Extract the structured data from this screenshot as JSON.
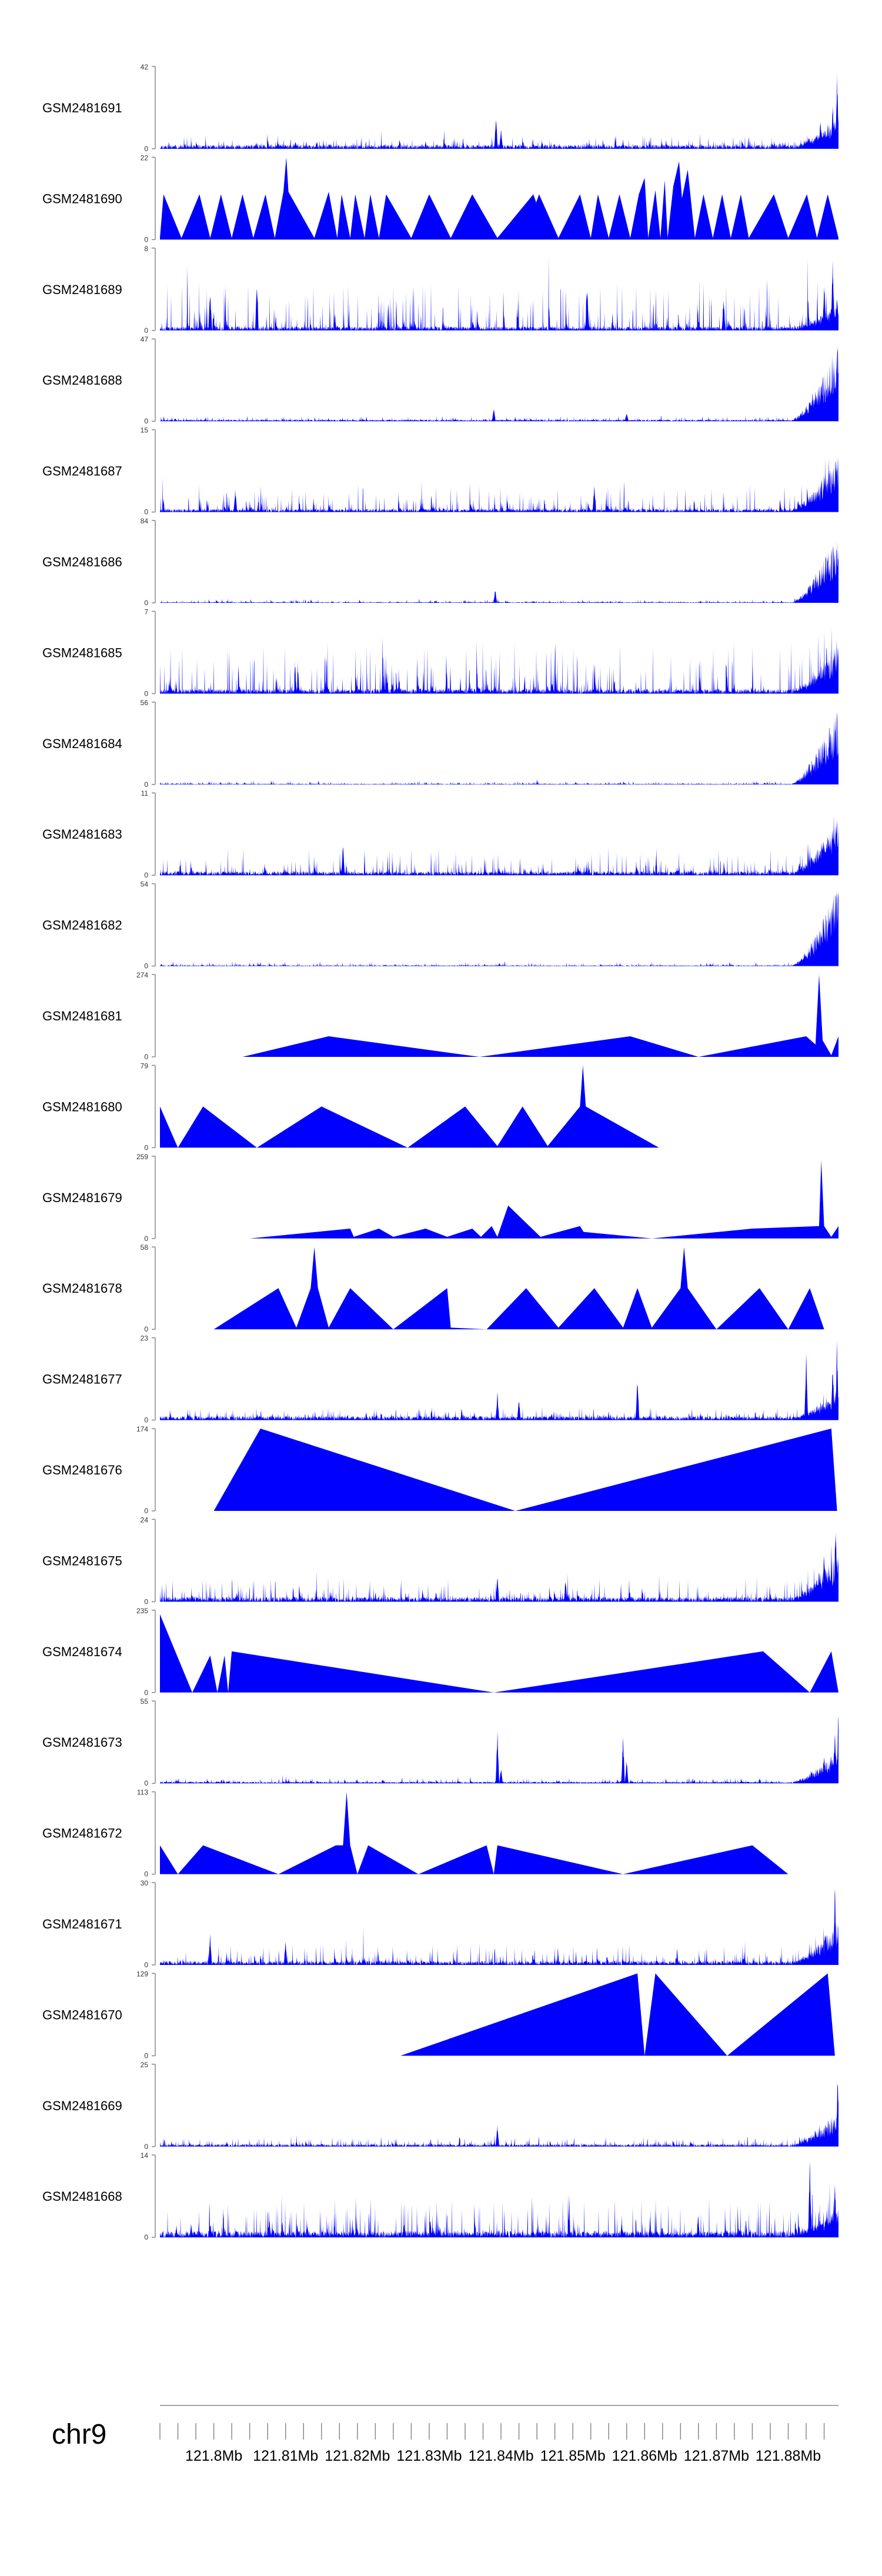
{
  "chart_data": {
    "type": "area",
    "chromosome_label": "chr9",
    "fill_color": "#0000ff",
    "axis_color": "#888888",
    "x_unit": "Mb",
    "xlim": [
      121.7925,
      121.887
    ],
    "x_tick_labels": [
      {
        "value": 121.8,
        "label": "121.8Mb"
      },
      {
        "value": 121.81,
        "label": "121.81Mb"
      },
      {
        "value": 121.82,
        "label": "121.82Mb"
      },
      {
        "value": 121.83,
        "label": "121.83Mb"
      },
      {
        "value": 121.84,
        "label": "121.84Mb"
      },
      {
        "value": 121.85,
        "label": "121.85Mb"
      },
      {
        "value": 121.86,
        "label": "121.86Mb"
      },
      {
        "value": 121.87,
        "label": "121.87Mb"
      },
      {
        "value": 121.88,
        "label": "121.88Mb"
      }
    ],
    "minor_tick_step": 0.0025,
    "tracks": [
      {
        "name": "GSM2481691",
        "ymin": 0,
        "ymax": 42,
        "style": "dense",
        "base": 0.05,
        "noise": 0.12,
        "tail": 0.35,
        "seed": 11,
        "peaks": [
          [
            121.8393,
            0.45
          ],
          [
            121.84,
            0.25
          ],
          [
            121.8845,
            0.4
          ],
          [
            121.8862,
            0.6
          ],
          [
            121.8868,
            1.0
          ]
        ]
      },
      {
        "name": "GSM2481690",
        "ymin": 0,
        "ymax": 22,
        "style": "tri",
        "points": [
          [
            121.7925,
            0.02
          ],
          [
            121.793,
            0.55
          ],
          [
            121.7955,
            0.02
          ],
          [
            121.798,
            0.55
          ],
          [
            121.7995,
            0.02
          ],
          [
            121.801,
            0.55
          ],
          [
            121.8025,
            0.02
          ],
          [
            121.804,
            0.55
          ],
          [
            121.8055,
            0.02
          ],
          [
            121.8072,
            0.55
          ],
          [
            121.8085,
            0.02
          ],
          [
            121.8097,
            0.58
          ],
          [
            121.8101,
            1.0
          ],
          [
            121.8104,
            0.58
          ],
          [
            121.814,
            0.02
          ],
          [
            121.816,
            0.58
          ],
          [
            121.8172,
            0.02
          ],
          [
            121.8178,
            0.55
          ],
          [
            121.819,
            0.02
          ],
          [
            121.8197,
            0.55
          ],
          [
            121.821,
            0.02
          ],
          [
            121.8218,
            0.55
          ],
          [
            121.823,
            0.02
          ],
          [
            121.824,
            0.55
          ],
          [
            121.8275,
            0.02
          ],
          [
            121.83,
            0.55
          ],
          [
            121.833,
            0.02
          ],
          [
            121.836,
            0.55
          ],
          [
            121.8395,
            0.02
          ],
          [
            121.8445,
            0.55
          ],
          [
            121.8449,
            0.45
          ],
          [
            121.8453,
            0.55
          ],
          [
            121.848,
            0.02
          ],
          [
            121.851,
            0.55
          ],
          [
            121.8525,
            0.02
          ],
          [
            121.8535,
            0.55
          ],
          [
            121.855,
            0.02
          ],
          [
            121.8565,
            0.55
          ],
          [
            121.858,
            0.02
          ],
          [
            121.8592,
            0.55
          ],
          [
            121.86,
            0.75
          ],
          [
            121.8605,
            0.02
          ],
          [
            121.8615,
            0.6
          ],
          [
            121.8622,
            0.02
          ],
          [
            121.8628,
            0.72
          ],
          [
            121.8632,
            0.02
          ],
          [
            121.864,
            0.65
          ],
          [
            121.8648,
            0.95
          ],
          [
            121.8652,
            0.5
          ],
          [
            121.866,
            0.85
          ],
          [
            121.867,
            0.02
          ],
          [
            121.8682,
            0.55
          ],
          [
            121.8695,
            0.02
          ],
          [
            121.8708,
            0.55
          ],
          [
            121.872,
            0.02
          ],
          [
            121.8734,
            0.55
          ],
          [
            121.8745,
            0.02
          ],
          [
            121.878,
            0.55
          ],
          [
            121.88,
            0.02
          ],
          [
            121.8826,
            0.55
          ],
          [
            121.884,
            0.02
          ],
          [
            121.8855,
            0.55
          ],
          [
            121.887,
            0.02
          ]
        ]
      },
      {
        "name": "GSM2481689",
        "ymin": 0,
        "ymax": 8,
        "style": "dense",
        "base": 0.05,
        "noise": 0.55,
        "tail": 0.3,
        "seed": 23,
        "peaks": [
          [
            121.7995,
            0.55
          ],
          [
            121.806,
            0.6
          ],
          [
            121.852,
            0.6
          ],
          [
            121.871,
            0.45
          ],
          [
            121.885,
            0.6
          ],
          [
            121.8862,
            0.95
          ],
          [
            121.8868,
            0.5
          ]
        ]
      },
      {
        "name": "GSM2481688",
        "ymin": 0,
        "ymax": 47,
        "style": "dense",
        "base": 0.02,
        "noise": 0.05,
        "tail": 0.95,
        "seed": 31,
        "peaks": [
          [
            121.839,
            0.18
          ],
          [
            121.8575,
            0.12
          ]
        ]
      },
      {
        "name": "GSM2481687",
        "ymin": 0,
        "ymax": 15,
        "style": "dense",
        "base": 0.04,
        "noise": 0.3,
        "tail": 0.7,
        "seed": 37,
        "peaks": [
          [
            121.803,
            0.3
          ],
          [
            121.853,
            0.35
          ]
        ]
      },
      {
        "name": "GSM2481686",
        "ymin": 0,
        "ymax": 84,
        "style": "dense",
        "base": 0.01,
        "noise": 0.04,
        "tail": 0.9,
        "seed": 41,
        "peaks": [
          [
            121.8392,
            0.18
          ]
        ]
      },
      {
        "name": "GSM2481685",
        "ymin": 0,
        "ymax": 7,
        "style": "dense",
        "base": 0.06,
        "noise": 0.6,
        "tail": 0.55,
        "seed": 43,
        "peaks": []
      },
      {
        "name": "GSM2481684",
        "ymin": 0,
        "ymax": 56,
        "style": "dense",
        "base": 0.01,
        "noise": 0.04,
        "tail": 0.95,
        "seed": 47,
        "peaks": []
      },
      {
        "name": "GSM2481683",
        "ymin": 0,
        "ymax": 11,
        "style": "dense",
        "base": 0.05,
        "noise": 0.3,
        "tail": 0.7,
        "seed": 53,
        "peaks": [
          [
            121.818,
            0.4
          ]
        ]
      },
      {
        "name": "GSM2481682",
        "ymin": 0,
        "ymax": 54,
        "style": "dense",
        "base": 0.01,
        "noise": 0.05,
        "tail": 1.0,
        "seed": 59,
        "peaks": []
      },
      {
        "name": "GSM2481681",
        "ymin": 0,
        "ymax": 274,
        "style": "tri",
        "points": [
          [
            121.804,
            0.0
          ],
          [
            121.816,
            0.25
          ],
          [
            121.837,
            0.0
          ],
          [
            121.858,
            0.25
          ],
          [
            121.8675,
            0.0
          ],
          [
            121.8825,
            0.25
          ],
          [
            121.8838,
            0.15
          ],
          [
            121.8843,
            1.0
          ],
          [
            121.8848,
            0.2
          ],
          [
            121.886,
            0.02
          ],
          [
            121.887,
            0.25
          ]
        ]
      },
      {
        "name": "GSM2481680",
        "ymin": 0,
        "ymax": 79,
        "style": "tri",
        "points": [
          [
            121.7925,
            0.5
          ],
          [
            121.795,
            0.0
          ],
          [
            121.7985,
            0.5
          ],
          [
            121.806,
            0.0
          ],
          [
            121.815,
            0.5
          ],
          [
            121.827,
            0.0
          ],
          [
            121.835,
            0.5
          ],
          [
            121.8395,
            0.02
          ],
          [
            121.843,
            0.5
          ],
          [
            121.8465,
            0.02
          ],
          [
            121.851,
            0.5
          ],
          [
            121.8514,
            1.0
          ],
          [
            121.8518,
            0.5
          ],
          [
            121.862,
            0.0
          ]
        ]
      },
      {
        "name": "GSM2481679",
        "ymin": 0,
        "ymax": 259,
        "style": "tri",
        "points": [
          [
            121.805,
            0.0
          ],
          [
            121.819,
            0.12
          ],
          [
            121.8195,
            0.02
          ],
          [
            121.823,
            0.12
          ],
          [
            121.825,
            0.02
          ],
          [
            121.8295,
            0.12
          ],
          [
            121.8325,
            0.02
          ],
          [
            121.836,
            0.12
          ],
          [
            121.8372,
            0.02
          ],
          [
            121.8387,
            0.15
          ],
          [
            121.8395,
            0.02
          ],
          [
            121.841,
            0.4
          ],
          [
            121.8455,
            0.02
          ],
          [
            121.851,
            0.15
          ],
          [
            121.8515,
            0.08
          ],
          [
            121.861,
            0.0
          ],
          [
            121.875,
            0.12
          ],
          [
            121.8843,
            0.15
          ],
          [
            121.8846,
            0.95
          ],
          [
            121.885,
            0.15
          ],
          [
            121.886,
            0.02
          ],
          [
            121.887,
            0.15
          ]
        ]
      },
      {
        "name": "GSM2481678",
        "ymin": 0,
        "ymax": 58,
        "style": "tri",
        "points": [
          [
            121.8,
            0.0
          ],
          [
            121.809,
            0.5
          ],
          [
            121.8115,
            0.02
          ],
          [
            121.8135,
            0.5
          ],
          [
            121.814,
            1.0
          ],
          [
            121.8145,
            0.5
          ],
          [
            121.816,
            0.02
          ],
          [
            121.819,
            0.5
          ],
          [
            121.825,
            0.0
          ],
          [
            121.8325,
            0.5
          ],
          [
            121.833,
            0.02
          ],
          [
            121.838,
            0.0
          ],
          [
            121.8435,
            0.5
          ],
          [
            121.848,
            0.02
          ],
          [
            121.853,
            0.5
          ],
          [
            121.857,
            0.02
          ],
          [
            121.859,
            0.5
          ],
          [
            121.861,
            0.02
          ],
          [
            121.865,
            0.5
          ],
          [
            121.8655,
            1.0
          ],
          [
            121.866,
            0.5
          ],
          [
            121.87,
            0.0
          ],
          [
            121.876,
            0.5
          ],
          [
            121.88,
            0.0
          ],
          [
            121.883,
            0.5
          ],
          [
            121.885,
            0.0
          ]
        ]
      },
      {
        "name": "GSM2481677",
        "ymin": 0,
        "ymax": 23,
        "style": "dense",
        "base": 0.05,
        "noise": 0.12,
        "tail": 0.3,
        "seed": 61,
        "peaks": [
          [
            121.8395,
            0.35
          ],
          [
            121.8425,
            0.3
          ],
          [
            121.859,
            0.6
          ],
          [
            121.8825,
            0.9
          ],
          [
            121.884,
            0.2
          ],
          [
            121.8862,
            0.8
          ],
          [
            121.8868,
            1.0
          ]
        ]
      },
      {
        "name": "GSM2481676",
        "ymin": 0,
        "ymax": 174,
        "style": "tri",
        "points": [
          [
            121.8,
            0.0
          ],
          [
            121.8065,
            1.0
          ],
          [
            121.842,
            0.0
          ],
          [
            121.886,
            1.0
          ],
          [
            121.8868,
            0.0
          ]
        ]
      },
      {
        "name": "GSM2481675",
        "ymin": 0,
        "ymax": 24,
        "style": "dense",
        "base": 0.06,
        "noise": 0.25,
        "tail": 0.6,
        "seed": 67,
        "peaks": [
          [
            121.8395,
            0.35
          ],
          [
            121.849,
            0.3
          ],
          [
            121.885,
            0.7
          ],
          [
            121.8866,
            1.0
          ]
        ]
      },
      {
        "name": "GSM2481674",
        "ymin": 0,
        "ymax": 235,
        "style": "tri",
        "points": [
          [
            121.7925,
            0.95
          ],
          [
            121.797,
            0.0
          ],
          [
            121.7995,
            0.45
          ],
          [
            121.8005,
            0.0
          ],
          [
            121.8015,
            0.45
          ],
          [
            121.802,
            0.0
          ],
          [
            121.8025,
            0.5
          ],
          [
            121.839,
            0.0
          ],
          [
            121.8765,
            0.5
          ],
          [
            121.883,
            0.0
          ],
          [
            121.886,
            0.5
          ],
          [
            121.887,
            0.0
          ]
        ]
      },
      {
        "name": "GSM2481673",
        "ymin": 0,
        "ymax": 55,
        "style": "dense",
        "base": 0.02,
        "noise": 0.06,
        "tail": 0.4,
        "seed": 71,
        "peaks": [
          [
            121.8395,
            0.7
          ],
          [
            121.84,
            0.2
          ],
          [
            121.857,
            0.6
          ],
          [
            121.8575,
            0.3
          ],
          [
            121.885,
            0.4
          ],
          [
            121.8865,
            0.7
          ],
          [
            121.887,
            1.0
          ]
        ]
      },
      {
        "name": "GSM2481672",
        "ymin": 0,
        "ymax": 113,
        "style": "tri",
        "points": [
          [
            121.7925,
            0.35
          ],
          [
            121.795,
            0.0
          ],
          [
            121.7985,
            0.35
          ],
          [
            121.809,
            0.0
          ],
          [
            121.817,
            0.35
          ],
          [
            121.818,
            0.35
          ],
          [
            121.8185,
            1.0
          ],
          [
            121.819,
            0.35
          ],
          [
            121.82,
            0.0
          ],
          [
            121.8215,
            0.35
          ],
          [
            121.8285,
            0.0
          ],
          [
            121.838,
            0.35
          ],
          [
            121.839,
            0.0
          ],
          [
            121.8395,
            0.35
          ],
          [
            121.857,
            0.0
          ],
          [
            121.875,
            0.35
          ],
          [
            121.88,
            0.0
          ]
        ]
      },
      {
        "name": "GSM2481671",
        "ymin": 0,
        "ymax": 30,
        "style": "dense",
        "base": 0.05,
        "noise": 0.22,
        "tail": 0.5,
        "seed": 73,
        "peaks": [
          [
            121.7995,
            0.4
          ],
          [
            121.81,
            0.35
          ],
          [
            121.8865,
            1.0
          ]
        ]
      },
      {
        "name": "GSM2481670",
        "ymin": 0,
        "ymax": 129,
        "style": "tri",
        "points": [
          [
            121.826,
            0.0
          ],
          [
            121.859,
            1.0
          ],
          [
            121.86,
            0.0
          ],
          [
            121.8615,
            1.0
          ],
          [
            121.8715,
            0.0
          ],
          [
            121.8855,
            1.0
          ],
          [
            121.8865,
            0.0
          ]
        ]
      },
      {
        "name": "GSM2481669",
        "ymin": 0,
        "ymax": 25,
        "style": "dense",
        "base": 0.03,
        "noise": 0.1,
        "tail": 0.45,
        "seed": 79,
        "peaks": [
          [
            121.8395,
            0.3
          ],
          [
            121.8869,
            1.0
          ]
        ]
      },
      {
        "name": "GSM2481668",
        "ymin": 0,
        "ymax": 14,
        "style": "dense",
        "base": 0.08,
        "noise": 0.45,
        "tail": 0.3,
        "seed": 83,
        "peaks": [
          [
            121.883,
            1.0
          ],
          [
            121.8865,
            0.8
          ]
        ]
      }
    ]
  }
}
